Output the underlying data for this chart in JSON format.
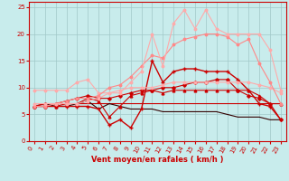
{
  "xlabel": "Vent moyen/en rafales ( km/h )",
  "ylabel": "",
  "xlim": [
    -0.5,
    23.5
  ],
  "ylim": [
    0,
    26
  ],
  "yticks": [
    0,
    5,
    10,
    15,
    20,
    25
  ],
  "xticks": [
    0,
    1,
    2,
    3,
    4,
    5,
    6,
    7,
    8,
    9,
    10,
    11,
    12,
    13,
    14,
    15,
    16,
    17,
    18,
    19,
    20,
    21,
    22,
    23
  ],
  "bg_color": "#c8ecec",
  "grid_color": "#a0c8c8",
  "series": [
    {
      "x": [
        0,
        1,
        2,
        3,
        4,
        5,
        6,
        7,
        8,
        9,
        10,
        11,
        12,
        13,
        14,
        15,
        16,
        17,
        18,
        19,
        20,
        21,
        22,
        23
      ],
      "y": [
        6.5,
        7,
        7,
        7,
        7,
        7,
        7,
        7,
        7,
        7,
        7,
        7,
        7,
        7,
        7,
        7,
        7,
        7,
        7,
        7,
        7,
        7,
        7,
        7
      ],
      "color": "#cc0000",
      "lw": 0.8,
      "marker": null,
      "ms": 0
    },
    {
      "x": [
        0,
        1,
        2,
        3,
        4,
        5,
        6,
        7,
        8,
        9,
        10,
        11,
        12,
        13,
        14,
        15,
        16,
        17,
        18,
        19,
        20,
        21,
        22,
        23
      ],
      "y": [
        6.5,
        7,
        7,
        7.5,
        8,
        8.5,
        8,
        8,
        8.5,
        9,
        9.5,
        9.5,
        10,
        10,
        10.5,
        11,
        11,
        11.5,
        11.5,
        9.5,
        8.5,
        8,
        7,
        4
      ],
      "color": "#cc0000",
      "lw": 0.8,
      "marker": "D",
      "ms": 1.8
    },
    {
      "x": [
        0,
        1,
        2,
        3,
        4,
        5,
        6,
        7,
        8,
        9,
        10,
        11,
        12,
        13,
        14,
        15,
        16,
        17,
        18,
        19,
        20,
        21,
        22,
        23
      ],
      "y": [
        7,
        7,
        6.5,
        6.5,
        7,
        7.5,
        6,
        7,
        6.5,
        6,
        6,
        6,
        5.5,
        5.5,
        5.5,
        5.5,
        5.5,
        5.5,
        5,
        4.5,
        4.5,
        4.5,
        4,
        4
      ],
      "color": "#330000",
      "lw": 0.8,
      "marker": null,
      "ms": 0
    },
    {
      "x": [
        0,
        1,
        2,
        3,
        4,
        5,
        6,
        7,
        8,
        9,
        10,
        11,
        12,
        13,
        14,
        15,
        16,
        17,
        18,
        19,
        20,
        21,
        22,
        23
      ],
      "y": [
        6.5,
        6.5,
        6.5,
        6.5,
        6.5,
        6.5,
        6,
        3,
        4,
        2.5,
        6,
        15,
        11,
        13,
        13.5,
        13.5,
        13,
        13,
        13,
        11.5,
        9.5,
        7,
        6.5,
        4
      ],
      "color": "#cc0000",
      "lw": 1.0,
      "marker": "+",
      "ms": 3.5
    },
    {
      "x": [
        0,
        1,
        2,
        3,
        4,
        5,
        6,
        7,
        8,
        9,
        10,
        11,
        12,
        13,
        14,
        15,
        16,
        17,
        18,
        19,
        20,
        21,
        22,
        23
      ],
      "y": [
        6.5,
        6.5,
        6.5,
        7,
        7,
        8,
        7.5,
        4.5,
        6.5,
        8.5,
        9,
        9.5,
        9,
        9.5,
        9.5,
        9.5,
        9.5,
        9.5,
        9.5,
        9.5,
        9.5,
        8.5,
        7,
        7
      ],
      "color": "#cc0000",
      "lw": 0.8,
      "marker": "^",
      "ms": 2.0
    },
    {
      "x": [
        0,
        1,
        2,
        3,
        4,
        5,
        6,
        7,
        8,
        9,
        10,
        11,
        12,
        13,
        14,
        15,
        16,
        17,
        18,
        19,
        20,
        21,
        22,
        23
      ],
      "y": [
        9.5,
        9.5,
        9.5,
        9.5,
        11,
        11.5,
        9,
        9,
        9.5,
        10,
        10,
        10,
        10.5,
        11,
        11,
        11,
        11,
        11,
        11,
        11,
        11,
        10.5,
        10,
        9
      ],
      "color": "#ffaaaa",
      "lw": 0.8,
      "marker": "o",
      "ms": 1.8
    },
    {
      "x": [
        0,
        1,
        2,
        3,
        4,
        5,
        6,
        7,
        8,
        9,
        10,
        11,
        12,
        13,
        14,
        15,
        16,
        17,
        18,
        19,
        20,
        21,
        22,
        23
      ],
      "y": [
        6.5,
        6.5,
        7,
        7.5,
        8,
        8,
        8.5,
        10,
        10.5,
        12,
        14,
        16,
        15.5,
        18,
        19,
        19.5,
        20,
        20,
        19.5,
        18,
        19,
        14.5,
        11,
        7
      ],
      "color": "#ff8888",
      "lw": 0.8,
      "marker": "o",
      "ms": 1.8
    },
    {
      "x": [
        0,
        1,
        2,
        3,
        4,
        5,
        6,
        7,
        8,
        9,
        10,
        11,
        12,
        13,
        14,
        15,
        16,
        17,
        18,
        19,
        20,
        21,
        22,
        23
      ],
      "y": [
        7,
        7,
        7,
        7,
        7,
        7.5,
        8,
        9,
        9,
        11,
        13,
        20,
        14,
        22,
        24.5,
        21,
        24.5,
        21,
        20,
        20,
        20,
        20,
        17,
        9.5
      ],
      "color": "#ffaaaa",
      "lw": 0.8,
      "marker": "o",
      "ms": 1.8
    }
  ]
}
